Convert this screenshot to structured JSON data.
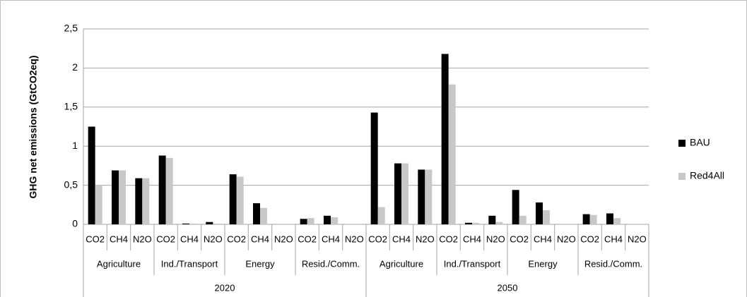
{
  "chart_data": {
    "type": "bar",
    "y_label": "GHG net emissions (GtCO2eq)",
    "categories": [
      "CO2",
      "CH4",
      "N2O",
      "CO2",
      "CH4",
      "N2O",
      "CO2",
      "CH4",
      "N2O",
      "CO2",
      "CH4",
      "N2O",
      "CO2",
      "CH4",
      "N2O",
      "CO2",
      "CH4",
      "N2O",
      "CO2",
      "CH4",
      "N2O",
      "CO2",
      "CH4",
      "N2O"
    ],
    "sectors": [
      "Agriculture",
      "Ind./Transport",
      "Energy",
      "Resid./Comm.",
      "Agriculture",
      "Ind./Transport",
      "Energy",
      "Resid./Comm."
    ],
    "years": [
      "2020",
      "2050"
    ],
    "series": [
      {
        "name": "BAU",
        "color": "#000000",
        "values": [
          1.25,
          0.69,
          0.59,
          0.88,
          0.01,
          0.03,
          0.64,
          0.27,
          0,
          0.07,
          0.11,
          0,
          1.43,
          0.78,
          0.7,
          2.18,
          0.02,
          0.11,
          0.44,
          0.28,
          0,
          0.13,
          0.14,
          0
        ]
      },
      {
        "name": "Red4All",
        "color": "#c8c8c8",
        "values": [
          0.5,
          0.69,
          0.59,
          0.85,
          0.01,
          0.01,
          0.61,
          0.21,
          0,
          0.08,
          0.09,
          0,
          0.22,
          0.78,
          0.7,
          1.79,
          0.02,
          0.03,
          0.11,
          0.18,
          0,
          0.12,
          0.08,
          0
        ]
      }
    ],
    "ylim": [
      0,
      2.5
    ],
    "yticks": [
      0,
      {
        "value": 0.5,
        "label": "0,5"
      },
      1,
      {
        "value": 1.5,
        "label": "1,5"
      },
      2,
      {
        "value": 2.5,
        "label": "2,5"
      }
    ],
    "grid": true
  }
}
